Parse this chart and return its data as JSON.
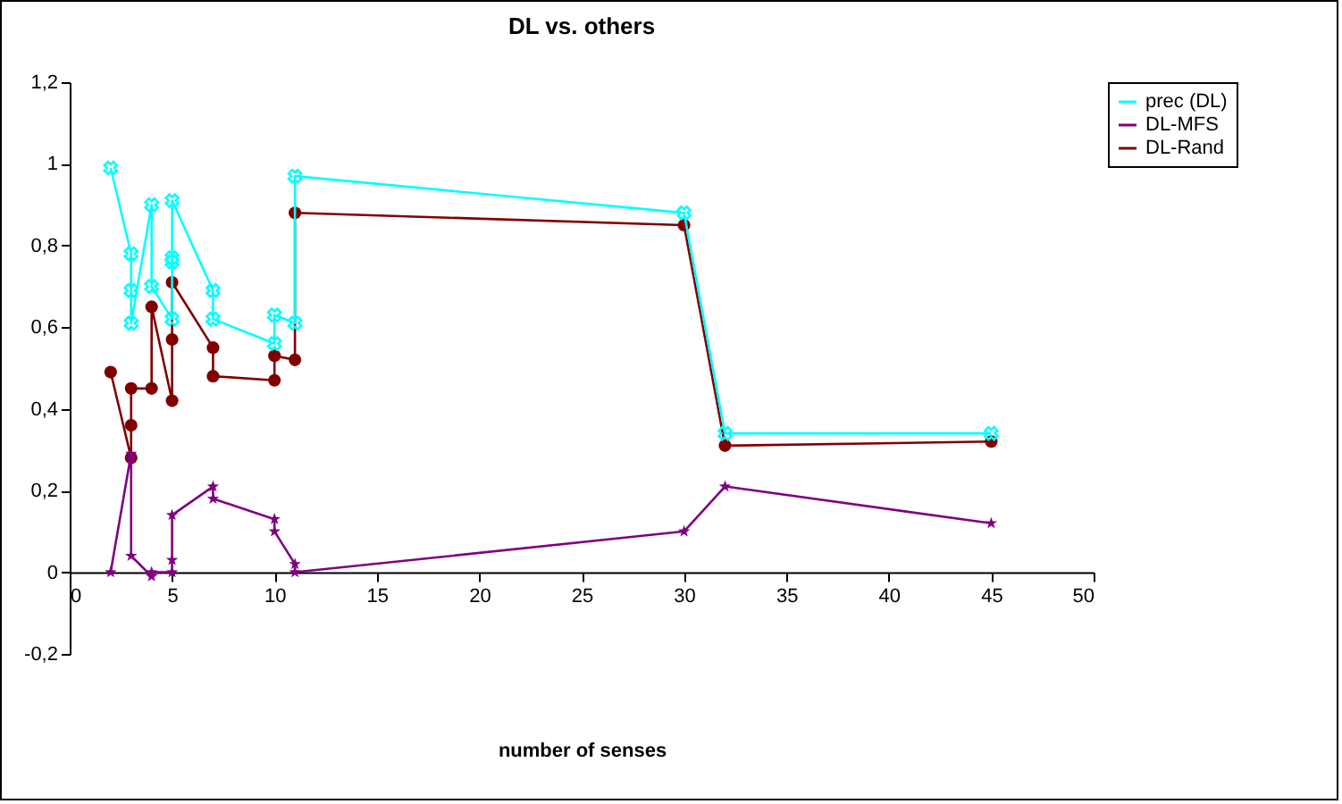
{
  "chart_data": {
    "type": "line",
    "title": "DL vs. others",
    "xlabel": "number of senses",
    "xlim": [
      0,
      50
    ],
    "xticks": [
      0,
      5,
      10,
      15,
      20,
      25,
      30,
      35,
      40,
      45,
      50
    ],
    "ylim": [
      -0.2,
      1.2
    ],
    "yticks": [
      {
        "value": -0.2,
        "label": "-0,2"
      },
      0,
      {
        "value": 0.2,
        "label": "0,2"
      },
      {
        "value": 0.4,
        "label": "0,4"
      },
      {
        "value": 0.6,
        "label": "0,6"
      },
      {
        "value": 0.8,
        "label": "0,8"
      },
      1,
      {
        "value": 1.2,
        "label": "1,2"
      }
    ],
    "grid": false,
    "legend": "right",
    "series": [
      {
        "name": "prec (DL)",
        "color": "#00ffff",
        "marker": "cross",
        "x": [
          2,
          3,
          3,
          3,
          4,
          4,
          5,
          5,
          5,
          5,
          7,
          7,
          10,
          10,
          11,
          11,
          30,
          32,
          45
        ],
        "values": [
          0.99,
          0.78,
          0.69,
          0.61,
          0.9,
          0.7,
          0.62,
          0.77,
          0.76,
          0.91,
          0.69,
          0.62,
          0.56,
          0.63,
          0.61,
          0.97,
          0.88,
          0.34,
          0.34
        ]
      },
      {
        "name": "DL-MFS",
        "color": "#800080",
        "marker": "star",
        "x": [
          2,
          3,
          3,
          3,
          4,
          4,
          5,
          5,
          5,
          7,
          7,
          10,
          10,
          11,
          11,
          30,
          32,
          45
        ],
        "values": [
          0,
          0.29,
          0.28,
          0.04,
          -0.01,
          0,
          0,
          0.03,
          0.14,
          0.21,
          0.18,
          0.13,
          0.1,
          0.02,
          0,
          0.1,
          0.21,
          0.12
        ]
      },
      {
        "name": "DL-Rand",
        "color": "#800000",
        "marker": "circle",
        "x": [
          2,
          3,
          3,
          3,
          4,
          4,
          5,
          5,
          5,
          7,
          7,
          10,
          10,
          11,
          11,
          30,
          32,
          45
        ],
        "values": [
          0.49,
          0.28,
          0.36,
          0.45,
          0.45,
          0.65,
          0.42,
          0.57,
          0.71,
          0.55,
          0.48,
          0.47,
          0.53,
          0.52,
          0.88,
          0.85,
          0.31,
          0.32
        ]
      }
    ]
  }
}
